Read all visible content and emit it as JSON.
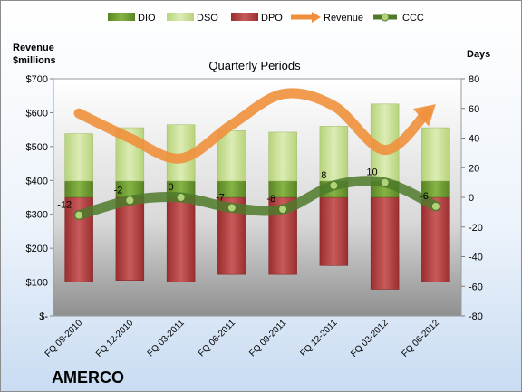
{
  "company": "AMERCO",
  "colors": {
    "dio": "#6c9a2e",
    "dso": "#c7df8f",
    "dpo": "#b23a3a",
    "revenue": "#f0903c",
    "ccc": "#4e7a2a"
  },
  "chart_data": {
    "type": "bar",
    "title": "Quarterly Periods",
    "categories": [
      "FQ 09-2010",
      "FQ 12-2010",
      "FQ 03-2011",
      "FQ 06-2011",
      "FQ 09-2011",
      "FQ 12-2011",
      "FQ 03-2012",
      "FQ 06-2012"
    ],
    "y_left": {
      "label_line1": "Revenue",
      "label_line2": "$millions",
      "range": [
        0,
        700
      ],
      "ticks": [
        "$-",
        "$100",
        "$200",
        "$300",
        "$400",
        "$500",
        "$600",
        "$700"
      ]
    },
    "y_right": {
      "label": "Days",
      "range": [
        -80,
        80
      ],
      "ticks": [
        "-80",
        "-60",
        "-40",
        "-20",
        "0",
        "20",
        "40",
        "60",
        "80"
      ]
    },
    "legend": {
      "placement": "top",
      "entries": [
        "DIO",
        "DSO",
        "DPO",
        "Revenue",
        "CCC"
      ]
    },
    "series": [
      {
        "name": "DIO",
        "axis": "days",
        "values": [
          11,
          11,
          11,
          11,
          11,
          11,
          11,
          11
        ]
      },
      {
        "name": "DSO",
        "axis": "days",
        "values": [
          32,
          36,
          38,
          34,
          33,
          37,
          52,
          36
        ]
      },
      {
        "name": "DPO",
        "axis": "days",
        "values": [
          -57,
          -56,
          -57,
          -52,
          -52,
          -46,
          -62,
          -57
        ]
      },
      {
        "name": "Revenue",
        "axis": "revenue",
        "values": [
          598,
          525,
          465,
          565,
          655,
          620,
          490,
          625
        ]
      },
      {
        "name": "CCC",
        "axis": "days",
        "values": [
          -12,
          -2,
          0,
          -7,
          -8,
          8,
          10,
          -6
        ],
        "labels": [
          "-12",
          "-2",
          "0",
          "-7",
          "-8",
          "8",
          "10",
          "-6"
        ]
      }
    ]
  }
}
